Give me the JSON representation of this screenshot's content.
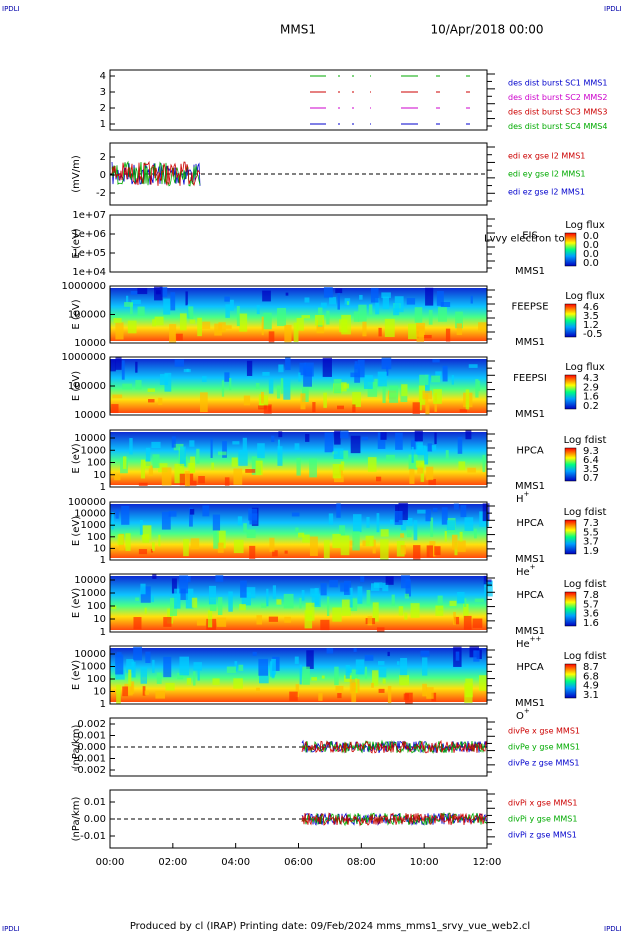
{
  "header": {
    "corner_left": "IPDLI",
    "corner_right": "IPDLI",
    "title": "MMS1",
    "date": "10/Apr/2018 00:00"
  },
  "panels": [
    {
      "type": "burst",
      "ylabel": "",
      "yticks": [
        "4",
        "3",
        "2",
        "1"
      ],
      "legend": [
        {
          "text": "des dist burst SC1 MMS1",
          "color": "#0000cc"
        },
        {
          "text": "des dist burst SC2 MMS2",
          "color": "#cc00cc"
        },
        {
          "text": "des dist burst SC3 MMS3",
          "color": "#cc0000"
        },
        {
          "text": "des dist burst SC4 MMS4",
          "color": "#00aa00"
        }
      ]
    },
    {
      "type": "line",
      "ylabel": "(mV/m)",
      "yticks": [
        "2",
        "0",
        "-2"
      ],
      "legend": [
        {
          "text": "edi ex gse l2 MMS1",
          "color": "#cc0000"
        },
        {
          "text": "edi ey gse l2 MMS1",
          "color": "#00aa00"
        },
        {
          "text": "edi ez gse l2 MMS1",
          "color": "#0000cc"
        }
      ]
    },
    {
      "type": "empty",
      "ylabel": "E (eV)",
      "yticks": [
        "1e+07",
        "1e+06",
        "1e+05",
        "1e+04"
      ],
      "labels": [
        "EIS",
        "MMS1"
      ],
      "overlay": "Lvvy electron to",
      "cbar_title": "Log flux",
      "cbar_ticks": [
        "0.0",
        "0.0",
        "0.0",
        "0.0"
      ]
    },
    {
      "type": "spectro",
      "ylabel": "E (eV)",
      "yticks": [
        "1000000",
        "100000",
        "10000"
      ],
      "labels": [
        "FEEPSE",
        "MMS1"
      ],
      "cbar_title": "Log flux",
      "cbar_ticks": [
        "4.6",
        "3.5",
        "1.2",
        "-0.5"
      ]
    },
    {
      "type": "spectro",
      "ylabel": "E (eV)",
      "yticks": [
        "1000000",
        "100000",
        "10000"
      ],
      "labels": [
        "FEEPSI",
        "MMS1"
      ],
      "cbar_title": "Log flux",
      "cbar_ticks": [
        "4.3",
        "2.9",
        "1.6",
        "0.2"
      ]
    },
    {
      "type": "spectro",
      "ylabel": "E (eV)",
      "yticks": [
        "10000",
        "1000",
        "100",
        "10",
        "1"
      ],
      "labels": [
        "HPCA",
        "MMS1"
      ],
      "species": {
        "base": "H",
        "sup": "+"
      },
      "cbar_title": "Log fdist",
      "cbar_ticks": [
        "9.3",
        "6.4",
        "3.5",
        "0.7"
      ]
    },
    {
      "type": "spectro",
      "ylabel": "E (eV)",
      "yticks": [
        "100000",
        "10000",
        "1000",
        "100",
        "10",
        "1"
      ],
      "labels": [
        "HPCA",
        "MMS1"
      ],
      "species": {
        "base": "He",
        "sup": "+"
      },
      "cbar_title": "Log fdist",
      "cbar_ticks": [
        "7.3",
        "5.5",
        "3.7",
        "1.9"
      ]
    },
    {
      "type": "spectro",
      "ylabel": "E (eV)",
      "yticks": [
        "10000",
        "1000",
        "100",
        "10",
        "1"
      ],
      "labels": [
        "HPCA",
        "MMS1"
      ],
      "species": {
        "base": "He",
        "sup": "++"
      },
      "cbar_title": "Log fdist",
      "cbar_ticks": [
        "7.8",
        "5.7",
        "3.6",
        "1.6"
      ]
    },
    {
      "type": "spectro",
      "ylabel": "E (eV)",
      "yticks": [
        "10000",
        "1000",
        "100",
        "10",
        "1"
      ],
      "labels": [
        "HPCA",
        "MMS1"
      ],
      "species": {
        "base": "O",
        "sup": "+"
      },
      "cbar_title": "Log fdist",
      "cbar_ticks": [
        "8.7",
        "6.8",
        "4.9",
        "3.1"
      ]
    },
    {
      "type": "line2",
      "ylabel": "(nPa/km)",
      "yticks": [
        "0.002",
        "0.001",
        "0.000",
        "-0.001",
        "-0.002"
      ],
      "legend": [
        {
          "text": "divPe x gse MMS1",
          "color": "#cc0000"
        },
        {
          "text": "divPe y gse MMS1",
          "color": "#00aa00"
        },
        {
          "text": "divPe z gse MMS1",
          "color": "#0000cc"
        }
      ]
    },
    {
      "type": "line2",
      "ylabel": "(nPa/km)",
      "yticks": [
        "0.01",
        "0.00",
        "-0.01"
      ],
      "legend": [
        {
          "text": "divPi x gse MMS1",
          "color": "#cc0000"
        },
        {
          "text": "divPi y gse MMS1",
          "color": "#00aa00"
        },
        {
          "text": "divPi z gse MMS1",
          "color": "#0000cc"
        }
      ]
    }
  ],
  "xticks": [
    "00:00",
    "02:00",
    "04:00",
    "06:00",
    "08:00",
    "10:00",
    "12:00"
  ],
  "footer": {
    "text": "Produced by cl (IRAP)   Printing date: 09/Feb/2024   mms_mms1_srvy_vue_web2.cl",
    "corner_left": "IPDLI",
    "corner_right": "IPDLI"
  }
}
